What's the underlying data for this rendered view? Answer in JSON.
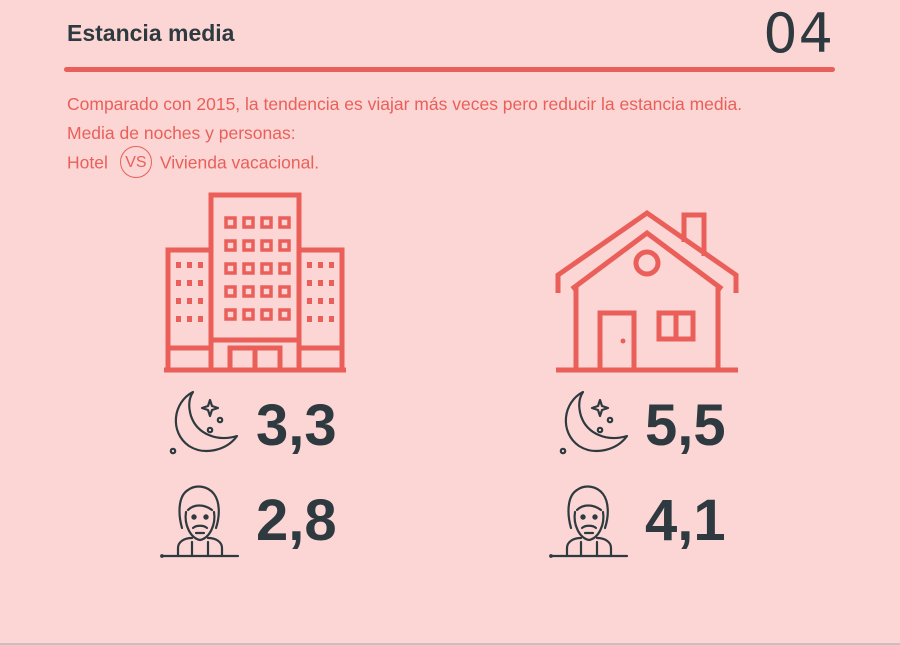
{
  "header": {
    "title": "Estancia media",
    "page_number": "04"
  },
  "intro": {
    "line1": "Comparado con 2015, la tendencia es viajar más veces pero reducir la estancia media.",
    "line2": "Media de noches y personas:",
    "hotel_label": "Hotel",
    "vs_label": "VS",
    "vacation_label": "Vivienda vacacional."
  },
  "hotel": {
    "icon": "hotel-building-icon",
    "nights": "3,3",
    "persons": "2,8"
  },
  "vacation_home": {
    "icon": "house-icon",
    "nights": "5,5",
    "persons": "4,1"
  },
  "colors": {
    "background": "#fbd6d4",
    "accent": "#ea5f59",
    "text_dark": "#2f3a40"
  }
}
